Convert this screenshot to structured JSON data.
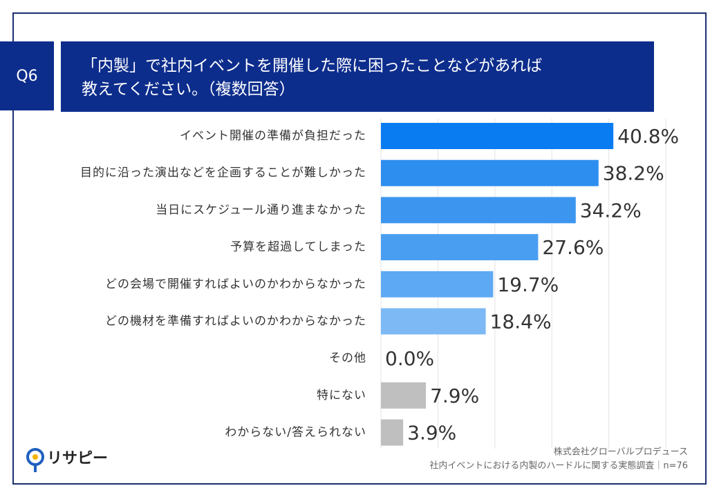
{
  "chart_data": {
    "type": "barh",
    "question": "Q6",
    "title": [
      "「内製」で社内イベントを開催した際に困ったことなどがあれば",
      "教えてください。（複数回答）"
    ],
    "categories": [
      "イベント開催の準備が負担だった",
      "目的に沿った演出などを企画することが難しかった",
      "当日にスケジュール通り進まなかった",
      "予算を超過してしまった",
      "どの会場で開催すればよいのかわからなかった",
      "どの機材を準備すればよいのかわからなかった",
      "その他",
      "特にない",
      "わからない/答えられない"
    ],
    "values": [
      40.8,
      38.2,
      34.2,
      27.6,
      19.7,
      18.4,
      0.0,
      7.9,
      3.9
    ],
    "value_labels": [
      "40.8%",
      "38.2%",
      "34.2%",
      "27.6%",
      "19.7%",
      "18.4%",
      "0.0%",
      "7.9%",
      "3.9%"
    ],
    "colors": [
      "#0a7cf2",
      "#2e8ef0",
      "#3c96f0",
      "#4a9ef1",
      "#5ea9f3",
      "#7db9f5",
      "#bfbfbf",
      "#bfbfbf",
      "#bfbfbf"
    ],
    "xlim": [
      0,
      50
    ],
    "xticks": [
      0,
      10,
      20,
      30,
      40,
      50
    ],
    "grid": true,
    "logo": "リサピー",
    "source": [
      "株式会社グローバルプロデュース",
      "社内イベントにおける内製のハードルに関する実態調査｜n=76"
    ]
  }
}
